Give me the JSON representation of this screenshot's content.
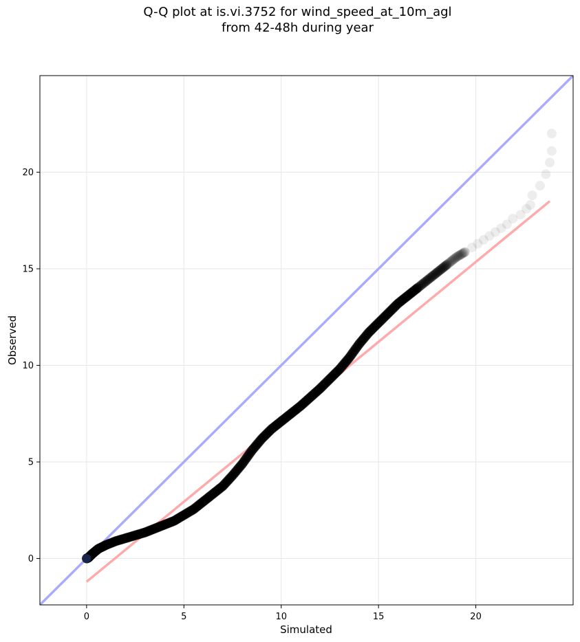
{
  "title": {
    "line1": "Q-Q plot at is.vi.3752 for wind_speed_at_10m_agl",
    "line2": "from 42-48h during year"
  },
  "chart_data": {
    "type": "scatter",
    "title": "Q-Q plot at is.vi.3752 for wind_speed_at_10m_agl\nfrom 42-48h during year",
    "xlabel": "Simulated",
    "ylabel": "Observed",
    "xlim": [
      -2.4,
      25.0
    ],
    "ylim": [
      -2.4,
      25.0
    ],
    "xticks": [
      0,
      5,
      10,
      15,
      20
    ],
    "yticks": [
      0,
      5,
      10,
      15,
      20
    ],
    "grid": true,
    "marker_color": "#000000",
    "series": [],
    "quantile_curve": {
      "x": [
        0.0,
        0.1,
        0.3,
        0.6,
        1.0,
        1.5,
        2.0,
        2.5,
        3.0,
        3.5,
        4.0,
        4.5,
        5.0,
        5.5,
        6.0,
        6.5,
        7.0,
        7.5,
        8.0,
        8.5,
        9.0,
        9.5,
        10.0,
        10.5,
        11.0,
        11.5,
        12.0,
        12.5,
        13.0,
        13.5,
        14.0,
        14.5,
        15.0,
        15.5,
        16.0,
        16.5,
        17.0,
        17.5,
        18.0,
        18.5,
        19.0,
        19.5
      ],
      "y": [
        0.0,
        0.05,
        0.25,
        0.5,
        0.7,
        0.9,
        1.05,
        1.2,
        1.35,
        1.55,
        1.75,
        1.95,
        2.25,
        2.55,
        2.95,
        3.35,
        3.75,
        4.3,
        4.9,
        5.6,
        6.2,
        6.7,
        7.1,
        7.5,
        7.9,
        8.35,
        8.8,
        9.3,
        9.8,
        10.4,
        11.1,
        11.7,
        12.2,
        12.7,
        13.2,
        13.6,
        14.0,
        14.4,
        14.8,
        15.2,
        15.6,
        15.9
      ]
    },
    "tail_points": {
      "x": [
        19.8,
        20.1,
        20.4,
        20.7,
        21.0,
        21.3,
        21.6,
        21.9,
        22.3,
        22.6,
        22.8,
        22.9,
        23.3,
        23.6,
        23.8,
        23.9,
        23.9
      ],
      "y": [
        16.1,
        16.3,
        16.5,
        16.7,
        16.9,
        17.1,
        17.3,
        17.6,
        17.8,
        18.1,
        18.3,
        18.8,
        19.3,
        19.9,
        20.5,
        21.1,
        22.0
      ]
    },
    "reference_lines": [
      {
        "label": "1:1",
        "color": "#aaaaff",
        "x": [
          -2.4,
          25.0
        ],
        "y": [
          -2.4,
          25.0
        ]
      },
      {
        "label": "fit",
        "color": "#ffaaaa",
        "x": [
          0.0,
          23.8
        ],
        "y": [
          -1.2,
          18.5
        ]
      }
    ]
  }
}
